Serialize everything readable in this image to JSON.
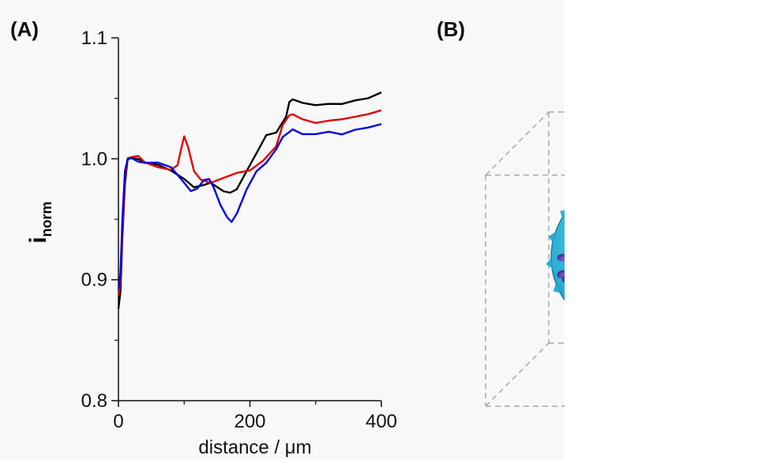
{
  "panels": {
    "a_label": "(A)",
    "b_label": "(B)"
  },
  "chart_data": {
    "type": "line",
    "title": "",
    "xlabel": "distance / μm",
    "ylabel_main": "i",
    "ylabel_sub": "norm",
    "xlim": [
      0,
      400
    ],
    "ylim": [
      0.8,
      1.1
    ],
    "xticks": [
      0,
      200,
      400
    ],
    "xtick_labels": [
      "0",
      "200",
      "400"
    ],
    "yticks": [
      0.8,
      0.9,
      1.0,
      1.1
    ],
    "ytick_labels": [
      "0.8",
      "0.9",
      "1.0",
      "1.1"
    ],
    "legend": "none",
    "grid": false,
    "series": [
      {
        "color": "#000000",
        "x": [
          0,
          3,
          6,
          10,
          14,
          20,
          30,
          40,
          60,
          80,
          100,
          115,
          130,
          140,
          160,
          170,
          180,
          195,
          210,
          225,
          240,
          255,
          260,
          265,
          280,
          300,
          320,
          340,
          360,
          380,
          400
        ],
        "y": [
          0.876,
          0.89,
          0.935,
          0.98,
          1.0,
          1.001,
          1.0,
          0.997,
          0.995,
          0.99,
          0.983,
          0.976,
          0.978,
          0.98,
          0.973,
          0.972,
          0.975,
          0.99,
          1.005,
          1.02,
          1.022,
          1.035,
          1.047,
          1.049,
          1.046,
          1.044,
          1.045,
          1.045,
          1.048,
          1.05,
          1.055
        ]
      },
      {
        "color": "#e00000",
        "x": [
          0,
          3,
          6,
          10,
          14,
          20,
          30,
          40,
          60,
          80,
          90,
          96,
          100,
          106,
          115,
          125,
          140,
          160,
          180,
          200,
          220,
          240,
          250,
          260,
          265,
          280,
          300,
          320,
          340,
          360,
          380,
          400
        ],
        "y": [
          0.887,
          0.9,
          0.94,
          0.985,
          1.0,
          1.001,
          1.002,
          0.997,
          0.993,
          0.991,
          0.995,
          1.01,
          1.019,
          1.01,
          0.99,
          0.983,
          0.98,
          0.984,
          0.988,
          0.99,
          0.998,
          1.01,
          1.028,
          1.036,
          1.037,
          1.033,
          1.03,
          1.032,
          1.033,
          1.035,
          1.037,
          1.04
        ]
      },
      {
        "color": "#0000e0",
        "x": [
          0,
          3,
          6,
          10,
          14,
          20,
          30,
          40,
          60,
          80,
          100,
          110,
          120,
          130,
          138,
          145,
          155,
          165,
          172,
          180,
          195,
          210,
          225,
          240,
          250,
          260,
          265,
          280,
          300,
          320,
          340,
          360,
          380,
          400
        ],
        "y": [
          0.892,
          0.905,
          0.95,
          0.99,
          1.0,
          1.001,
          0.998,
          0.997,
          0.997,
          0.993,
          0.98,
          0.973,
          0.975,
          0.982,
          0.983,
          0.976,
          0.962,
          0.952,
          0.948,
          0.955,
          0.975,
          0.99,
          0.997,
          1.008,
          1.018,
          1.022,
          1.024,
          1.02,
          1.02,
          1.022,
          1.02,
          1.024,
          1.026,
          1.029
        ]
      }
    ]
  },
  "schematic": {
    "arrow_colors": [
      "#e8141c",
      "#0d78d0",
      "#111111"
    ],
    "sphere_color": "#31b6d8",
    "spot_color": "#5a3eb6",
    "box_color": "#a8a8a8"
  }
}
